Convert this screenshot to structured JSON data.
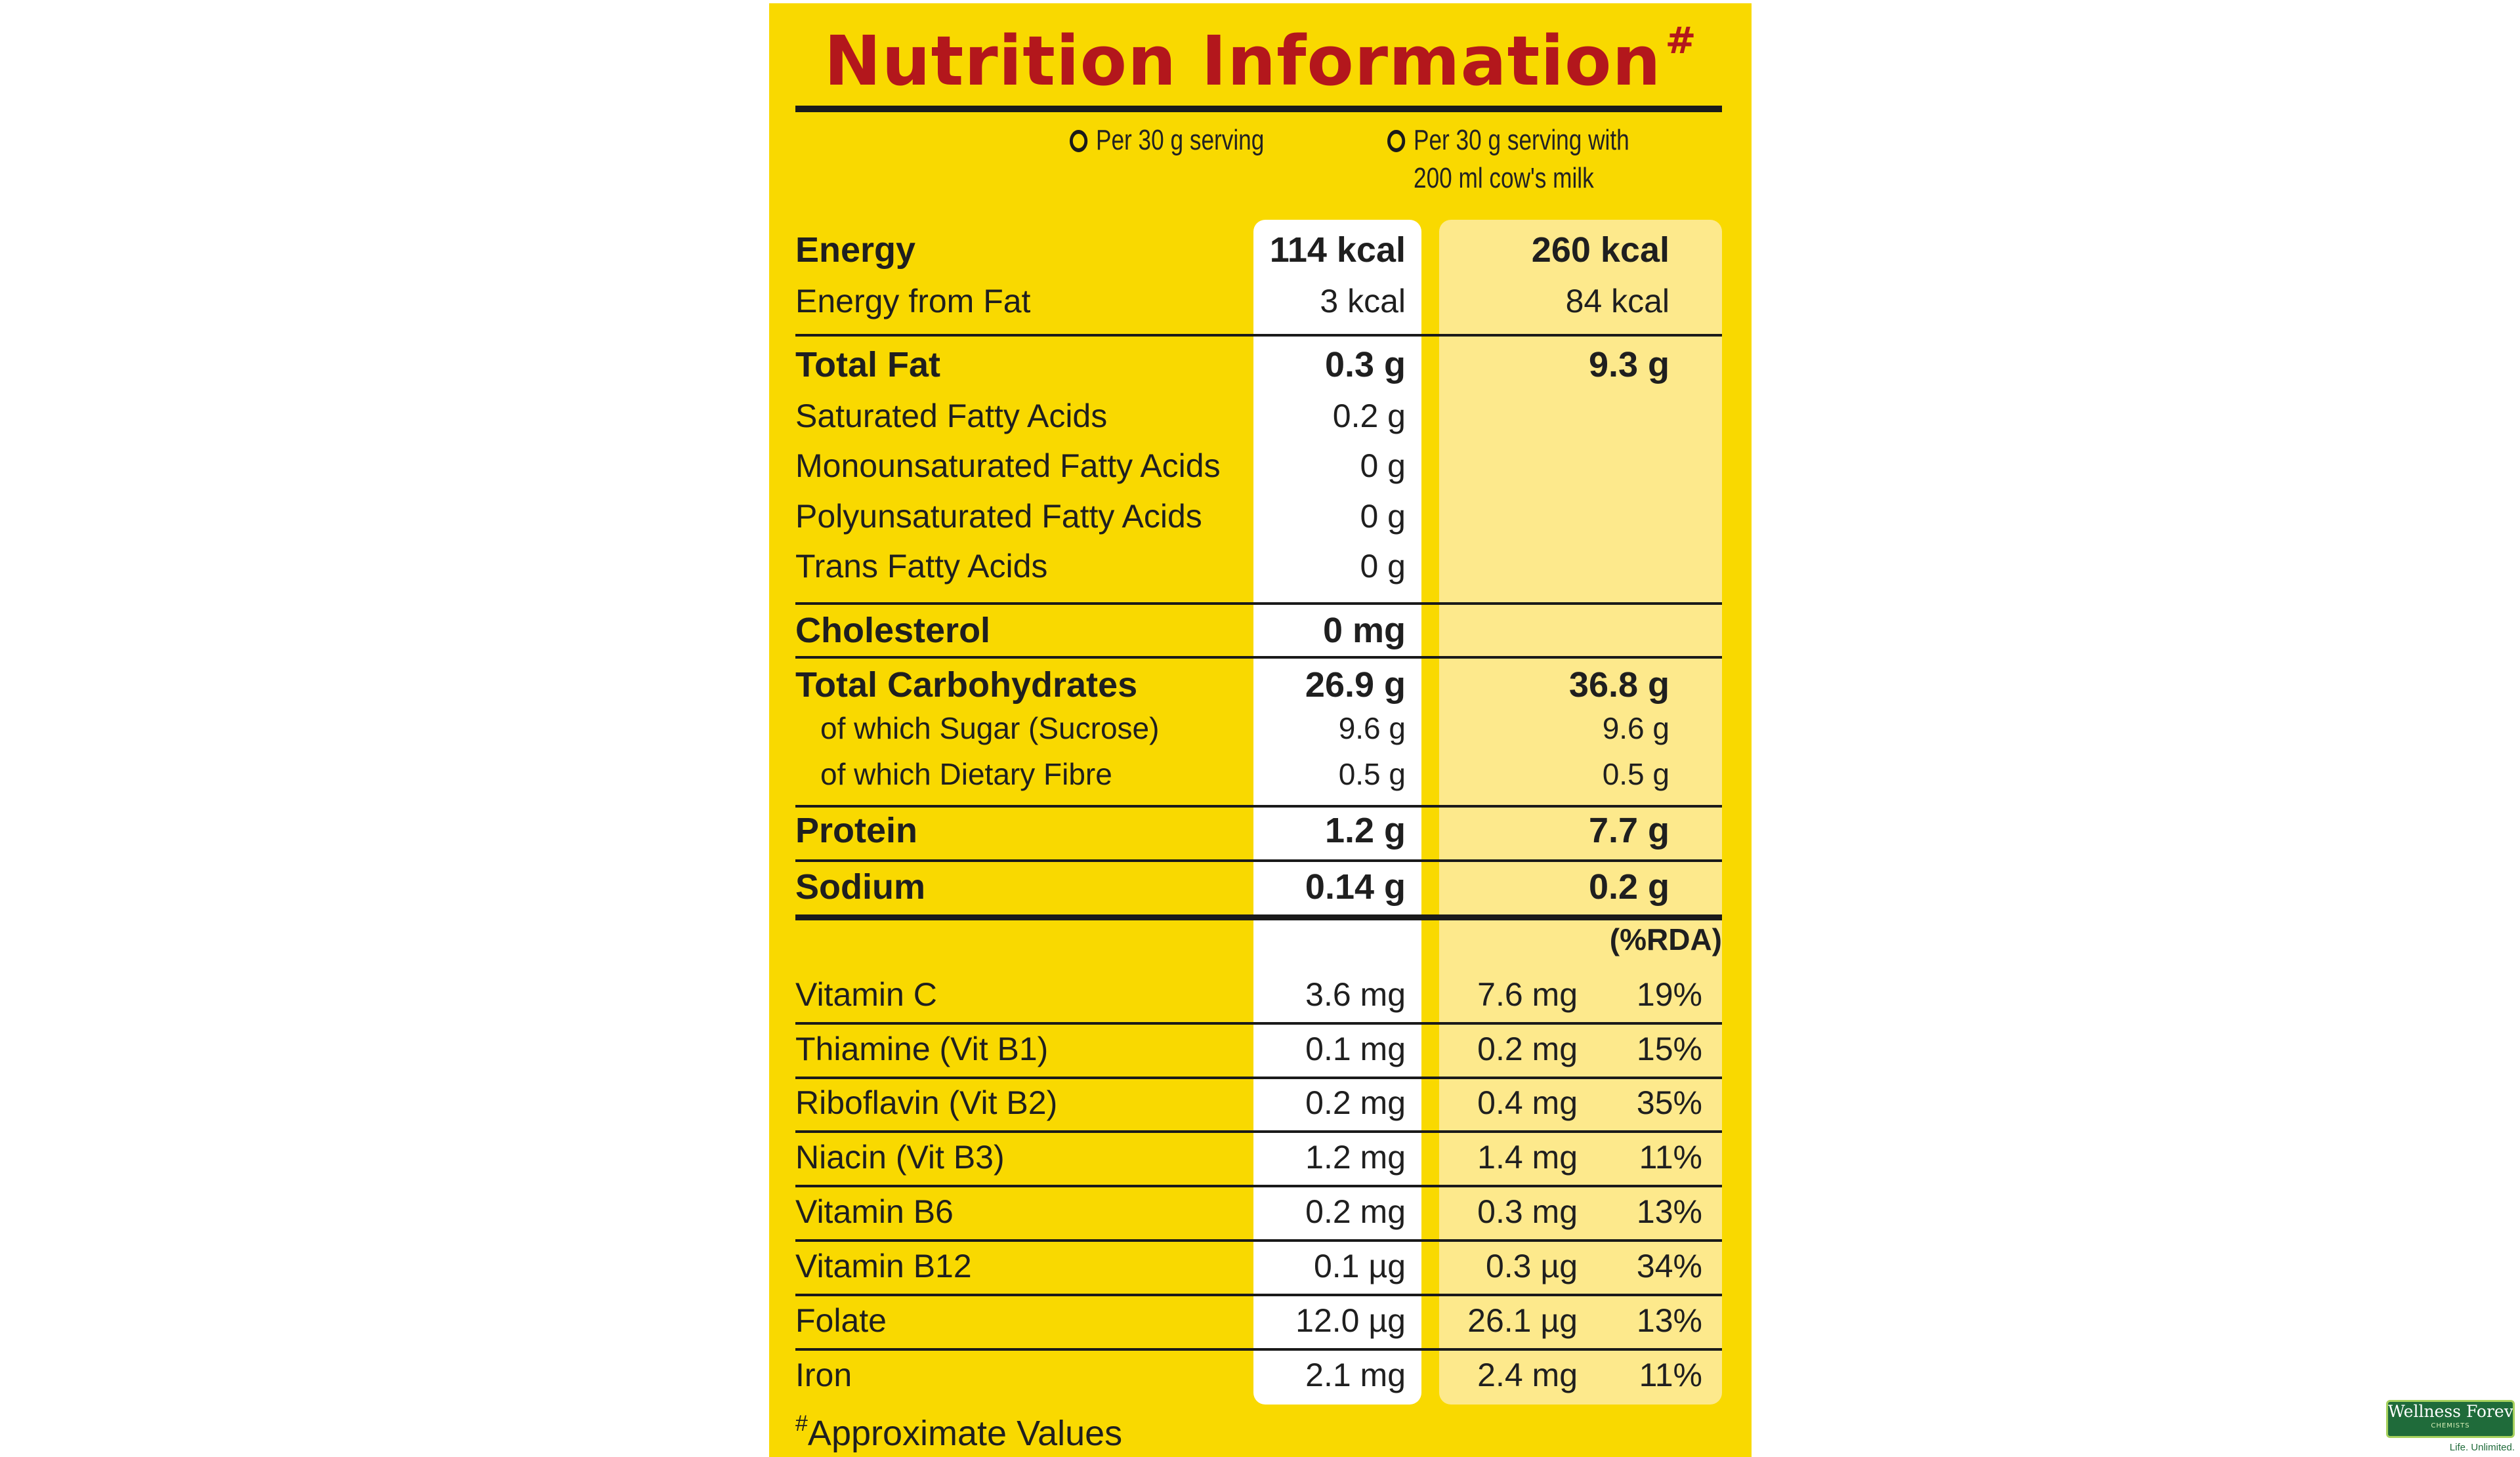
{
  "title": "Nutrition Information",
  "title_mark": "#",
  "columns": {
    "serving": "Per 30 g serving",
    "serving_with_milk": "Per 30 g serving with\n200 ml cow's milk"
  },
  "rda_header": "(%RDA)",
  "rows": [
    {
      "label": "Energy",
      "v1": "114 kcal",
      "v2": "260 kcal"
    },
    {
      "label": "Energy from Fat",
      "v1": "3 kcal",
      "v2": "84 kcal"
    },
    {
      "label": "Total Fat",
      "v1": "0.3 g",
      "v2": "9.3 g"
    },
    {
      "label": "Saturated Fatty Acids",
      "v1": "0.2 g",
      "v2": ""
    },
    {
      "label": "Monounsaturated Fatty Acids",
      "v1": "0 g",
      "v2": ""
    },
    {
      "label": "Polyunsaturated Fatty Acids",
      "v1": "0 g",
      "v2": ""
    },
    {
      "label": "Trans Fatty Acids",
      "v1": "0 g",
      "v2": ""
    },
    {
      "label": "Cholesterol",
      "v1": "0 mg",
      "v2": ""
    },
    {
      "label": "Total Carbohydrates",
      "v1": "26.9 g",
      "v2": "36.8 g"
    },
    {
      "label": "of which Sugar (Sucrose)",
      "v1": "9.6 g",
      "v2": "9.6 g"
    },
    {
      "label": "of which Dietary Fibre",
      "v1": "0.5 g",
      "v2": "0.5 g"
    },
    {
      "label": "Protein",
      "v1": "1.2 g",
      "v2": "7.7 g"
    },
    {
      "label": "Sodium",
      "v1": "0.14 g",
      "v2": "0.2 g"
    }
  ],
  "vitamins": [
    {
      "label": "Vitamin C",
      "v1": "3.6 mg",
      "v2": "7.6 mg",
      "rda": "19%"
    },
    {
      "label": "Thiamine (Vit B1)",
      "v1": "0.1 mg",
      "v2": "0.2 mg",
      "rda": "15%"
    },
    {
      "label": "Riboflavin (Vit B2)",
      "v1": "0.2 mg",
      "v2": "0.4 mg",
      "rda": "35%"
    },
    {
      "label": "Niacin (Vit B3)",
      "v1": "1.2 mg",
      "v2": "1.4 mg",
      "rda": "11%"
    },
    {
      "label": "Vitamin B6",
      "v1": "0.2 mg",
      "v2": "0.3 mg",
      "rda": "13%"
    },
    {
      "label": "Vitamin B12",
      "v1": "0.1 µg",
      "v2": "0.3 µg",
      "rda": "34%"
    },
    {
      "label": "Folate",
      "v1": "12.0 µg",
      "v2": "26.1 µg",
      "rda": "13%"
    },
    {
      "label": "Iron",
      "v1": "2.1 mg",
      "v2": "2.4 mg",
      "rda": "11%"
    }
  ],
  "footnote": {
    "mark": "#",
    "text": "Approximate Values"
  },
  "watermark": {
    "name": "Wellness Forever",
    "sub": "CHEMISTS",
    "tagline": "Life. Unlimited."
  },
  "colors": {
    "panel": "#f9d900",
    "title": "#b3171c",
    "cream": "#fde98c",
    "brand_green": "#1f6b3a"
  }
}
